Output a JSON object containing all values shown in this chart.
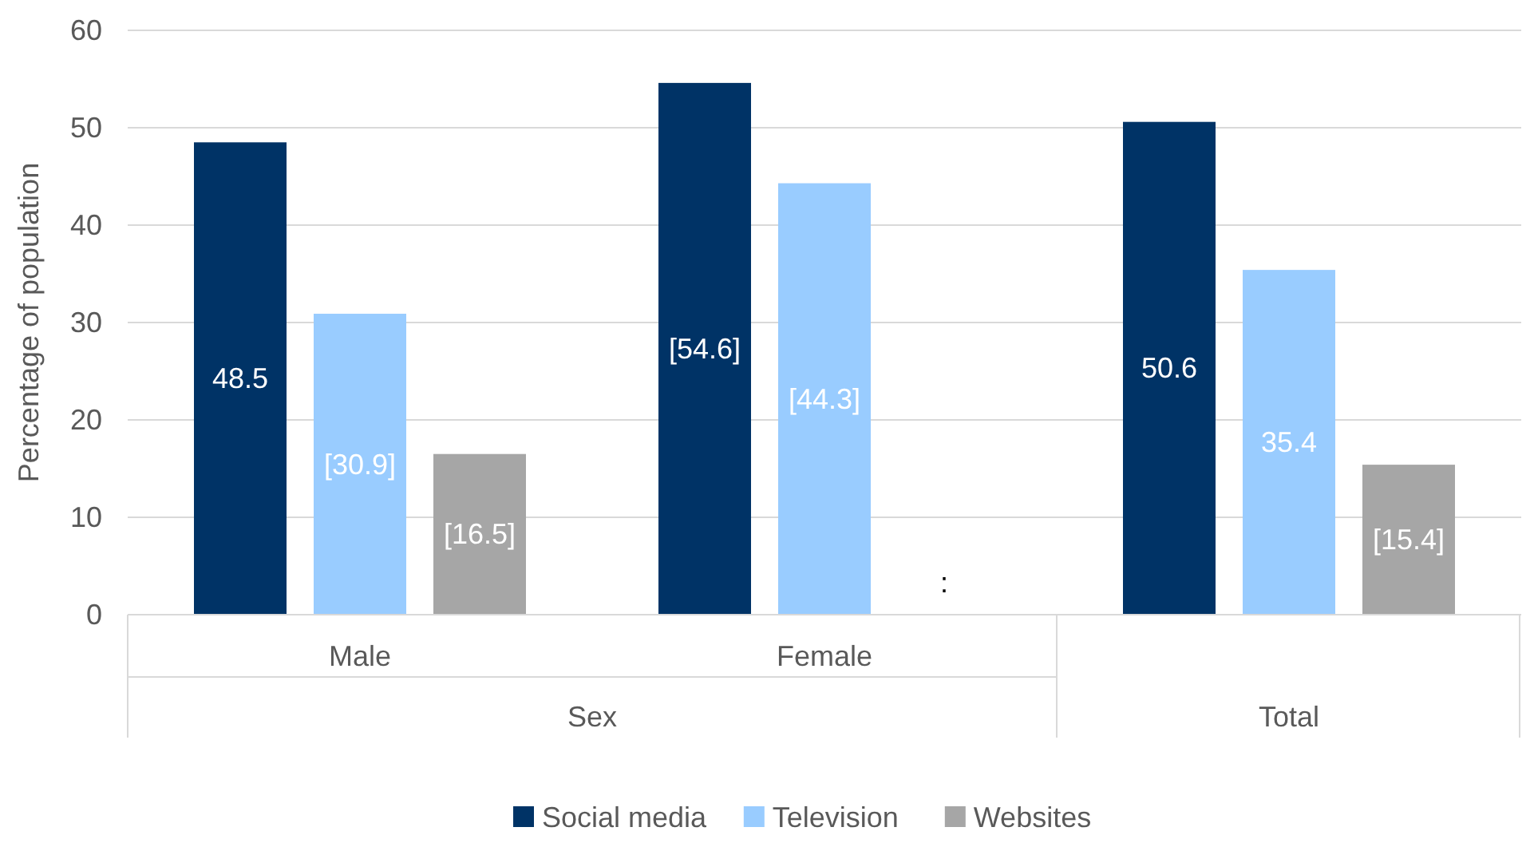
{
  "chart_data": {
    "type": "bar",
    "ylabel": "Percentage of population",
    "categories": [
      "Male",
      "Female",
      null
    ],
    "series": [
      {
        "name": "Social media",
        "color": "#003366",
        "values": [
          48.5,
          54.6,
          50.6
        ],
        "value_labels": [
          "48.5",
          "[54.6]",
          "50.6"
        ]
      },
      {
        "name": "Television",
        "color": "#99ccff",
        "values": [
          30.9,
          44.3,
          35.4
        ],
        "value_labels": [
          "[30.9]",
          "[44.3]",
          "35.4"
        ]
      },
      {
        "name": "Websites",
        "color": "#a6a6a6",
        "values": [
          16.5,
          null,
          15.4
        ],
        "value_labels": [
          "[16.5]",
          ":",
          "[15.4]"
        ]
      }
    ],
    "annotations": [
      "Sex",
      "Total"
    ],
    "ylim": [
      0,
      60
    ],
    "yticks": [
      0,
      10,
      20,
      30,
      40,
      50,
      60
    ],
    "grid": "y",
    "legend": "bottom"
  }
}
